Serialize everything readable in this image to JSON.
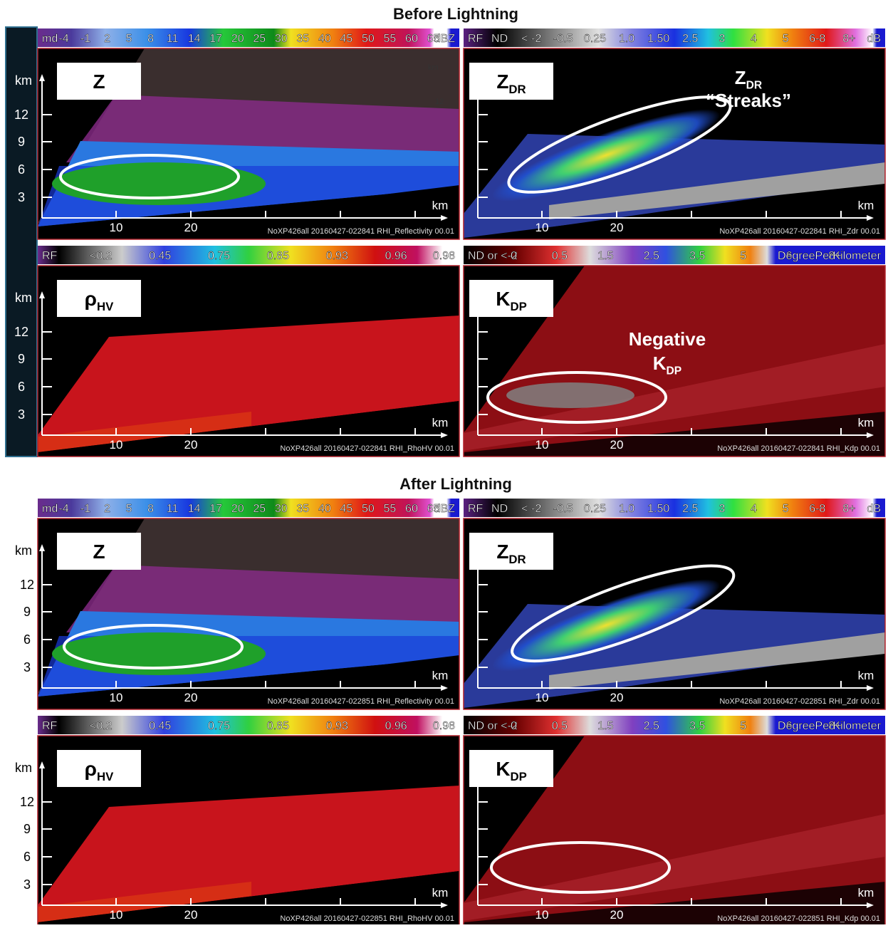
{
  "sections": [
    {
      "title": "Before Lightning",
      "y_axis": {
        "unit": "km",
        "ticks": [
          "12",
          "9",
          "6",
          "3"
        ]
      },
      "panels": [
        {
          "variable": {
            "main": "Z"
          },
          "colorbar": [
            "md",
            "-4",
            "-1",
            "2",
            "5",
            "8",
            "11",
            "14",
            "17",
            "20",
            "25",
            "30",
            "35",
            "40",
            "45",
            "50",
            "55",
            "60",
            "65",
            "dBZ"
          ],
          "x_ticks": [
            "10",
            "20"
          ],
          "x_unit": "km",
          "caption": "NoXP426all 20160427-022841 RHI_Reflectivity 00.01",
          "overlay": [
            "km",
            "12"
          ]
        },
        {
          "variable": {
            "main": "Z",
            "sub": "DR"
          },
          "colorbar": [
            "RF",
            "ND",
            "< -2",
            "-0.5",
            "0.25",
            "1.0",
            "1.50",
            "2.5",
            "3",
            "4",
            "5",
            "6-8",
            "8+",
            "dB"
          ],
          "x_ticks": [
            "10",
            "20"
          ],
          "x_unit": "km",
          "caption": "NoXP426all 20160427-022841 RHI_Zdr 00.01",
          "annotation": {
            "main": "Z",
            "sub": "DR",
            "text": "“Streaks”"
          }
        },
        {
          "variable": {
            "main": "ρ",
            "sub": "HV"
          },
          "colorbar": [
            "RF",
            "<0.2",
            "0.45",
            "0.75",
            "0.85",
            "0.93",
            "0.96",
            "0.98"
          ],
          "x_ticks": [
            "10",
            "20"
          ],
          "x_unit": "km",
          "caption": "NoXP426all 20160427-022841 RHI_RhoHV 00.01"
        },
        {
          "variable": {
            "main": "K",
            "sub": "DP"
          },
          "colorbar": [
            "ND or <-2",
            "0",
            "0.5",
            "1.5",
            "2.5",
            "3.5",
            "5",
            "6",
            "8+",
            "DegreePerKilometer"
          ],
          "x_ticks": [
            "10",
            "20"
          ],
          "x_unit": "km",
          "caption": "NoXP426all 20160427-022841 RHI_Kdp 00.01",
          "annotation": {
            "text": "Negative",
            "main": "K",
            "sub": "DP"
          }
        }
      ]
    },
    {
      "title": "After Lightning",
      "y_axis": {
        "unit": "km",
        "ticks": [
          "12",
          "9",
          "6",
          "3"
        ]
      },
      "panels": [
        {
          "variable": {
            "main": "Z"
          },
          "colorbar": [
            "md",
            "-4",
            "-1",
            "2",
            "5",
            "8",
            "11",
            "14",
            "17",
            "20",
            "25",
            "30",
            "35",
            "40",
            "45",
            "50",
            "55",
            "60",
            "65",
            "dBZ"
          ],
          "x_ticks": [
            "10",
            "20"
          ],
          "x_unit": "km",
          "caption": "NoXP426all 20160427-022851 RHI_Reflectivity 00.01"
        },
        {
          "variable": {
            "main": "Z",
            "sub": "DR"
          },
          "colorbar": [
            "RF",
            "ND",
            "< -2",
            "-0.5",
            "0.25",
            "1.0",
            "1.50",
            "2.5",
            "3",
            "4",
            "5",
            "6-8",
            "8+",
            "dB"
          ],
          "x_ticks": [
            "10",
            "20"
          ],
          "x_unit": "km",
          "caption": "NoXP426all 20160427-022851 RHI_Zdr 00.01"
        },
        {
          "variable": {
            "main": "ρ",
            "sub": "HV"
          },
          "colorbar": [
            "RF",
            "<0.2",
            "0.45",
            "0.75",
            "0.85",
            "0.93",
            "0.96",
            "0.98"
          ],
          "x_ticks": [
            "10",
            "20"
          ],
          "x_unit": "km",
          "caption": "NoXP426all 20160427-022851 RHI_RhoHV 00.01"
        },
        {
          "variable": {
            "main": "K",
            "sub": "DP"
          },
          "colorbar": [
            "ND or <-2",
            "0",
            "0.5",
            "1.5",
            "2.5",
            "3.5",
            "5",
            "6",
            "8+",
            "DegreePerKilometer"
          ],
          "x_ticks": [
            "10",
            "20"
          ],
          "x_unit": "km",
          "caption": "NoXP426all 20160427-022851 RHI_Kdp 00.01"
        }
      ]
    }
  ]
}
